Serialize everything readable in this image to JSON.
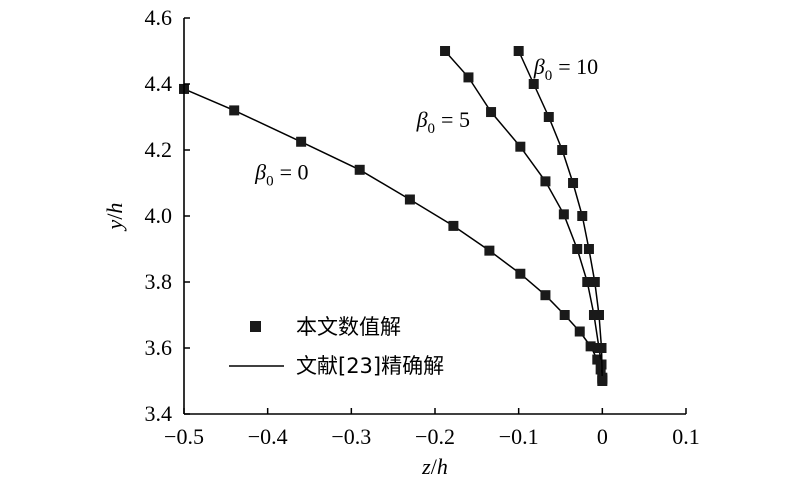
{
  "chart_data": {
    "type": "scatter",
    "xlabel": {
      "var": "z",
      "sep": "/",
      "unit": "h"
    },
    "ylabel": {
      "var": "y",
      "sep": "/",
      "unit": "h"
    },
    "xlim": [
      -0.5,
      0.1
    ],
    "ylim": [
      3.4,
      4.6
    ],
    "x_ticks": [
      "−0.5",
      "−0.4",
      "−0.3",
      "−0.2",
      "−0.1",
      "0",
      "0.1"
    ],
    "x_tick_values": [
      -0.5,
      -0.4,
      -0.3,
      -0.2,
      -0.1,
      0,
      0.1
    ],
    "y_ticks": [
      "3.4",
      "3.6",
      "3.8",
      "4.0",
      "4.2",
      "4.4",
      "4.6"
    ],
    "y_tick_values": [
      3.4,
      3.6,
      3.8,
      4.0,
      4.2,
      4.4,
      4.6
    ],
    "grid": false,
    "legend": {
      "position": "bottom-left",
      "marker_label": "本文数值解",
      "line_label": "文献[23]精确解"
    },
    "series": [
      {
        "beta": "0",
        "points": [
          [
            -0.5,
            4.385
          ],
          [
            -0.44,
            4.32
          ],
          [
            -0.36,
            4.225
          ],
          [
            -0.29,
            4.14
          ],
          [
            -0.23,
            4.05
          ],
          [
            -0.178,
            3.97
          ],
          [
            -0.135,
            3.895
          ],
          [
            -0.098,
            3.825
          ],
          [
            -0.068,
            3.76
          ],
          [
            -0.045,
            3.7
          ],
          [
            -0.027,
            3.65
          ],
          [
            -0.014,
            3.605
          ],
          [
            -0.006,
            3.565
          ],
          [
            -0.002,
            3.535
          ],
          [
            0.0,
            3.505
          ]
        ]
      },
      {
        "beta": "5",
        "points": [
          [
            -0.188,
            4.5
          ],
          [
            -0.16,
            4.42
          ],
          [
            -0.133,
            4.315
          ],
          [
            -0.098,
            4.21
          ],
          [
            -0.068,
            4.105
          ],
          [
            -0.046,
            4.005
          ],
          [
            -0.03,
            3.9
          ],
          [
            -0.018,
            3.8
          ],
          [
            -0.01,
            3.7
          ],
          [
            -0.004,
            3.6
          ],
          [
            -0.001,
            3.55
          ],
          [
            0.0,
            3.51
          ]
        ]
      },
      {
        "beta": "10",
        "points": [
          [
            -0.1,
            4.5
          ],
          [
            -0.082,
            4.4
          ],
          [
            -0.064,
            4.3
          ],
          [
            -0.048,
            4.2
          ],
          [
            -0.035,
            4.1
          ],
          [
            -0.024,
            4.0
          ],
          [
            -0.016,
            3.9
          ],
          [
            -0.009,
            3.8
          ],
          [
            -0.004,
            3.7
          ],
          [
            -0.001,
            3.6
          ],
          [
            0.0,
            3.5
          ]
        ]
      }
    ],
    "annotations": [
      {
        "sym": "β",
        "sub": "0",
        "rel": "= 0",
        "x": -0.415,
        "y": 4.11,
        "series": 0
      },
      {
        "sym": "β",
        "sub": "0",
        "rel": "= 5",
        "x": -0.222,
        "y": 4.27,
        "series": 1
      },
      {
        "sym": "β",
        "sub": "0",
        "rel": "= 10",
        "x": -0.082,
        "y": 4.43,
        "series": 2
      }
    ]
  }
}
